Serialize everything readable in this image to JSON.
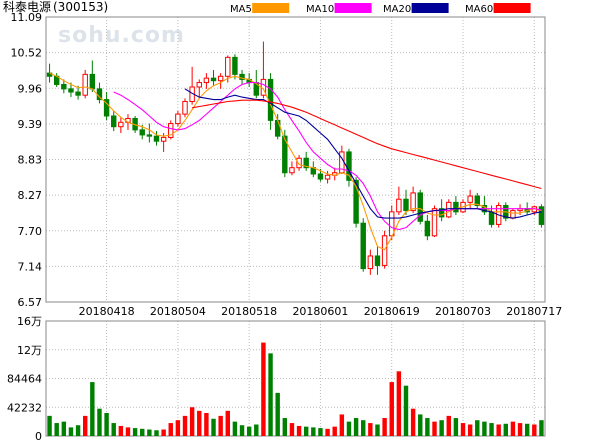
{
  "watermark": "sohu.com",
  "chart_data": [
    {
      "type": "candlestick",
      "title": "科泰电源",
      "code": "(300153)",
      "legend": [
        {
          "name": "MA5",
          "color": "#ff9900"
        },
        {
          "name": "MA10",
          "color": "#ff00ff"
        },
        {
          "name": "MA20",
          "color": "#000099"
        },
        {
          "name": "MA60",
          "color": "#ff0000"
        }
      ],
      "colors": {
        "up": "#ff0000",
        "down": "#008000",
        "grid": "#bbbbbb",
        "frame": "#888888"
      },
      "y_ticks": [
        "11.09",
        "10.52",
        "9.96",
        "9.39",
        "8.83",
        "8.27",
        "7.70",
        "7.14",
        "6.57"
      ],
      "ylim": [
        6.57,
        11.09
      ],
      "x_ticks": [
        "20180418",
        "20180504",
        "20180518",
        "20180601",
        "20180619",
        "20180703",
        "20180717"
      ],
      "x_tick_index": [
        8,
        18,
        28,
        38,
        48,
        58,
        68
      ],
      "candles": [
        [
          10.2,
          10.35,
          10.05,
          10.15
        ],
        [
          10.15,
          10.2,
          9.98,
          10.02
        ],
        [
          10.02,
          10.1,
          9.88,
          9.95
        ],
        [
          9.95,
          10.05,
          9.82,
          9.9
        ],
        [
          9.9,
          10.0,
          9.78,
          9.85
        ],
        [
          9.85,
          10.25,
          9.8,
          10.18
        ],
        [
          10.18,
          10.4,
          9.9,
          9.95
        ],
        [
          9.95,
          10.05,
          9.72,
          9.78
        ],
        [
          9.78,
          9.9,
          9.45,
          9.52
        ],
        [
          9.52,
          9.6,
          9.28,
          9.35
        ],
        [
          9.35,
          9.5,
          9.25,
          9.42
        ],
        [
          9.42,
          9.55,
          9.3,
          9.48
        ],
        [
          9.48,
          9.52,
          9.25,
          9.3
        ],
        [
          9.3,
          9.38,
          9.15,
          9.22
        ],
        [
          9.22,
          9.4,
          9.1,
          9.2
        ],
        [
          9.2,
          9.28,
          9.05,
          9.12
        ],
        [
          9.12,
          9.25,
          8.95,
          9.18
        ],
        [
          9.18,
          9.45,
          9.15,
          9.4
        ],
        [
          9.4,
          9.6,
          9.35,
          9.55
        ],
        [
          9.55,
          9.8,
          9.5,
          9.75
        ],
        [
          9.75,
          10.3,
          9.7,
          9.98
        ],
        [
          9.98,
          10.1,
          9.8,
          10.05
        ],
        [
          10.05,
          10.2,
          9.95,
          10.12
        ],
        [
          10.12,
          10.25,
          10.0,
          10.08
        ],
        [
          10.08,
          10.2,
          9.95,
          10.15
        ],
        [
          10.15,
          10.48,
          10.05,
          10.45
        ],
        [
          10.45,
          10.5,
          10.1,
          10.18
        ],
        [
          10.18,
          10.25,
          10.02,
          10.1
        ],
        [
          10.1,
          10.2,
          9.98,
          10.05
        ],
        [
          10.05,
          10.25,
          9.8,
          9.85
        ],
        [
          9.85,
          10.7,
          9.8,
          10.1
        ],
        [
          10.1,
          10.2,
          9.3,
          9.45
        ],
        [
          9.45,
          9.55,
          9.15,
          9.2
        ],
        [
          9.2,
          9.3,
          8.55,
          8.62
        ],
        [
          8.62,
          8.8,
          8.58,
          8.7
        ],
        [
          8.7,
          8.9,
          8.65,
          8.85
        ],
        [
          8.85,
          8.95,
          8.65,
          8.7
        ],
        [
          8.7,
          8.8,
          8.55,
          8.6
        ],
        [
          8.6,
          8.68,
          8.48,
          8.52
        ],
        [
          8.52,
          8.65,
          8.45,
          8.58
        ],
        [
          8.58,
          8.7,
          8.5,
          8.62
        ],
        [
          8.62,
          9.05,
          8.6,
          8.95
        ],
        [
          8.95,
          9.0,
          8.4,
          8.5
        ],
        [
          8.5,
          8.55,
          7.75,
          7.82
        ],
        [
          7.82,
          7.9,
          7.05,
          7.1
        ],
        [
          7.1,
          7.4,
          7.0,
          7.3
        ],
        [
          7.3,
          7.45,
          7.0,
          7.15
        ],
        [
          7.15,
          7.7,
          7.1,
          7.62
        ],
        [
          7.62,
          8.1,
          7.55,
          8.0
        ],
        [
          8.0,
          8.4,
          7.95,
          8.2
        ],
        [
          8.2,
          8.35,
          7.95,
          8.02
        ],
        [
          8.02,
          8.4,
          7.98,
          8.3
        ],
        [
          8.3,
          8.35,
          7.8,
          7.85
        ],
        [
          7.85,
          7.95,
          7.55,
          7.62
        ],
        [
          7.62,
          8.1,
          7.6,
          8.05
        ],
        [
          8.05,
          8.2,
          7.85,
          7.92
        ],
        [
          7.92,
          8.2,
          7.9,
          8.15
        ],
        [
          8.15,
          8.25,
          7.95,
          8.0
        ],
        [
          8.0,
          8.2,
          7.98,
          8.15
        ],
        [
          8.15,
          8.35,
          8.05,
          8.25
        ],
        [
          8.25,
          8.3,
          8.05,
          8.1
        ],
        [
          8.1,
          8.25,
          7.95,
          8.0
        ],
        [
          8.0,
          8.1,
          7.75,
          7.8
        ],
        [
          7.8,
          8.15,
          7.75,
          8.1
        ],
        [
          8.1,
          8.15,
          7.85,
          7.9
        ],
        [
          7.9,
          8.05,
          7.88,
          8.02
        ],
        [
          8.02,
          8.12,
          7.95,
          8.05
        ],
        [
          8.05,
          8.15,
          7.95,
          8.0
        ],
        [
          8.0,
          8.1,
          7.95,
          8.08
        ],
        [
          8.08,
          8.12,
          7.75,
          7.8
        ]
      ],
      "ma5": [
        10.2,
        10.15,
        10.08,
        10.02,
        9.97,
        9.98,
        9.95,
        9.82,
        9.72,
        9.6,
        9.5,
        9.42,
        9.38,
        9.35,
        9.3,
        9.22,
        9.2,
        9.22,
        9.3,
        9.45,
        9.62,
        9.8,
        9.92,
        10.0,
        10.05,
        10.12,
        10.15,
        10.12,
        10.1,
        10.03,
        9.95,
        9.7,
        9.45,
        9.15,
        8.95,
        8.75,
        8.72,
        8.7,
        8.65,
        8.6,
        8.58,
        8.62,
        8.58,
        8.4,
        8.1,
        7.75,
        7.45,
        7.4,
        7.6,
        7.85,
        8.0,
        8.05,
        8.05,
        7.98,
        7.95,
        7.95,
        8.0,
        8.05,
        8.08,
        8.12,
        8.12,
        8.08,
        8.0,
        8.0,
        8.0,
        7.98,
        7.98,
        8.02,
        8.05,
        8.02
      ],
      "ma10": [
        null,
        null,
        null,
        null,
        null,
        null,
        null,
        null,
        null,
        9.9,
        9.85,
        9.78,
        9.7,
        9.62,
        9.52,
        9.42,
        9.35,
        9.32,
        9.3,
        9.32,
        9.38,
        9.45,
        9.55,
        9.65,
        9.75,
        9.85,
        9.95,
        10.02,
        10.05,
        10.05,
        10.02,
        9.95,
        9.82,
        9.62,
        9.45,
        9.28,
        9.1,
        8.95,
        8.85,
        8.75,
        8.68,
        8.68,
        8.65,
        8.58,
        8.45,
        8.25,
        8.0,
        7.85,
        7.75,
        7.72,
        7.75,
        7.85,
        7.95,
        8.0,
        8.02,
        8.02,
        8.02,
        8.05,
        8.05,
        8.05,
        8.05,
        8.05,
        8.05,
        8.05,
        8.05,
        8.05,
        8.05,
        8.05,
        8.05,
        8.03
      ],
      "ma20": [
        null,
        null,
        null,
        null,
        null,
        null,
        null,
        null,
        null,
        null,
        null,
        null,
        null,
        null,
        null,
        null,
        null,
        null,
        null,
        9.95,
        9.88,
        9.82,
        9.8,
        9.78,
        9.78,
        9.82,
        9.85,
        9.82,
        9.8,
        9.78,
        9.78,
        9.72,
        9.65,
        9.58,
        9.55,
        9.52,
        9.45,
        9.35,
        9.25,
        9.15,
        9.0,
        8.85,
        8.65,
        8.45,
        8.25,
        8.05,
        7.92,
        7.9,
        7.9,
        7.9,
        7.92,
        7.95,
        7.98,
        8.0,
        8.02,
        8.03,
        8.05,
        8.05,
        8.05,
        8.05,
        8.05,
        8.02,
        8.0,
        7.95,
        7.92,
        7.9,
        7.92,
        7.95,
        7.98,
        8.0
      ],
      "ma60": [
        null,
        null,
        null,
        null,
        null,
        null,
        null,
        null,
        null,
        null,
        null,
        null,
        null,
        null,
        null,
        null,
        null,
        null,
        null,
        null,
        9.65,
        9.67,
        9.69,
        9.71,
        9.73,
        9.75,
        9.76,
        9.77,
        9.77,
        9.77,
        9.76,
        9.74,
        9.72,
        9.69,
        9.66,
        9.62,
        9.58,
        9.53,
        9.48,
        9.43,
        9.38,
        9.33,
        9.28,
        9.23,
        9.18,
        9.13,
        9.08,
        9.04,
        9.0,
        8.97,
        8.94,
        8.91,
        8.88,
        8.85,
        8.82,
        8.79,
        8.76,
        8.73,
        8.7,
        8.67,
        8.64,
        8.61,
        8.58,
        8.55,
        8.52,
        8.49,
        8.46,
        8.43,
        8.4,
        8.37
      ]
    },
    {
      "type": "bar",
      "title": "volume",
      "y_ticks": [
        "16万",
        "12万",
        "84464",
        "42232",
        "0"
      ],
      "ylim": [
        0,
        160000
      ],
      "values": [
        28000,
        18000,
        20000,
        12000,
        15000,
        28000,
        75000,
        38000,
        32000,
        18000,
        14000,
        12000,
        11000,
        10000,
        9000,
        8000,
        9000,
        18000,
        22000,
        28000,
        40000,
        35000,
        32000,
        24000,
        28000,
        35000,
        20000,
        15000,
        13000,
        16000,
        130000,
        115000,
        60000,
        25000,
        18000,
        14000,
        13000,
        12000,
        11000,
        10000,
        13000,
        30000,
        20000,
        25000,
        22000,
        18000,
        16000,
        25000,
        75000,
        90000,
        70000,
        38000,
        30000,
        25000,
        20000,
        22000,
        28000,
        25000,
        18000,
        16000,
        22000,
        20000,
        18000,
        16000,
        17000,
        20000,
        18000,
        17000,
        16000,
        22000
      ]
    }
  ]
}
